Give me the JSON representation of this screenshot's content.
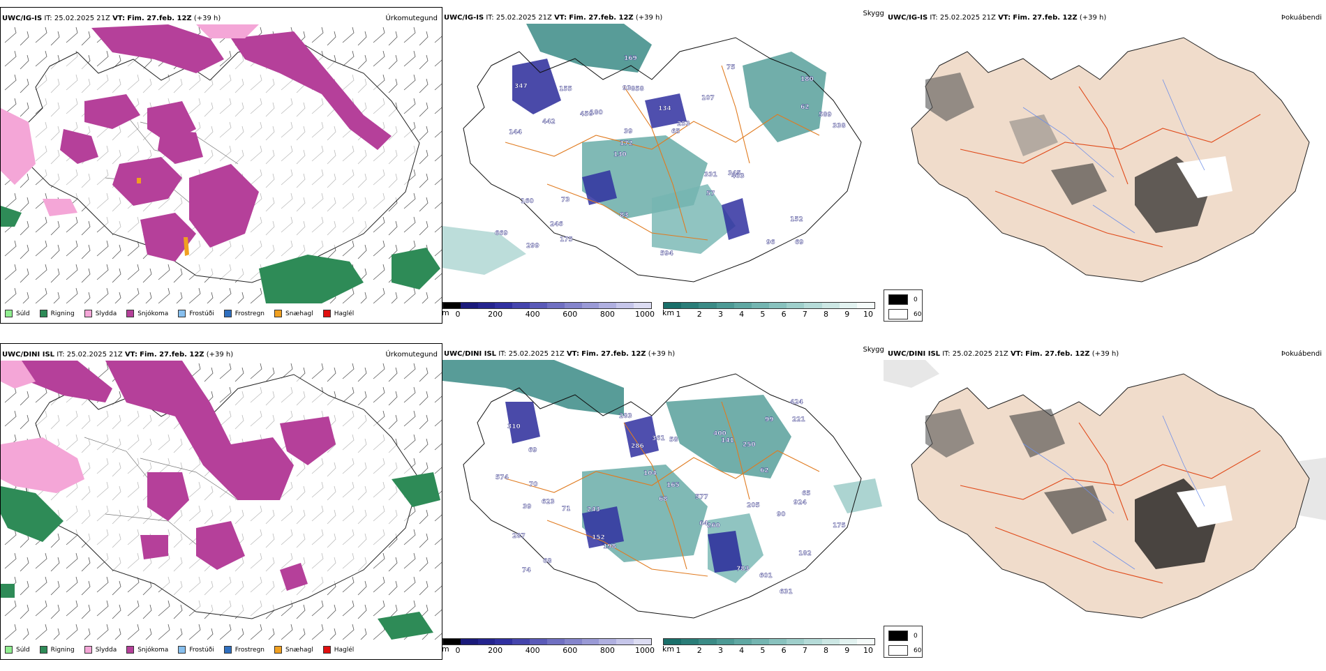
{
  "rows": [
    {
      "model": "UWC/IG-IS",
      "it_label": "IT:",
      "it": "25.02.2025 21Z",
      "vt_label": "VT:",
      "vt": "Fim. 27.feb. 12Z",
      "offset": "(+39 h)"
    },
    {
      "model": "UWC/DINI ISL",
      "it_label": "IT:",
      "it": "25.02.2025 21Z",
      "vt_label": "VT:",
      "vt": "Fim. 27.feb. 12Z",
      "offset": "(+39 h)"
    }
  ],
  "panel_names": {
    "precip": "Úrkomutegund",
    "visibility": "Skyggni",
    "fog": "Þokuábendi"
  },
  "precip_legend": [
    {
      "label": "Súld",
      "color": "#90ee90"
    },
    {
      "label": "Rigning",
      "color": "#2e8b57"
    },
    {
      "label": "Slydda",
      "color": "#f4a6d7"
    },
    {
      "label": "Snjókoma",
      "color": "#b5409a"
    },
    {
      "label": "Frostúði",
      "color": "#87bfee"
    },
    {
      "label": "Frostregn",
      "color": "#2f6fbf"
    },
    {
      "label": "Snæhagl",
      "color": "#f0a020"
    },
    {
      "label": "Haglél",
      "color": "#e01010"
    }
  ],
  "vis_m": {
    "unit": "m",
    "ticks": [
      "0",
      "200",
      "400",
      "600",
      "800",
      "1000"
    ],
    "colors": [
      "#000000",
      "#1a1a7a",
      "#24248e",
      "#3030a0",
      "#4545ad",
      "#5a5ab8",
      "#7070c2",
      "#8585cc",
      "#9a9ad6",
      "#b0b0e0",
      "#c6c6ea",
      "#dcdcf2"
    ]
  },
  "vis_km": {
    "unit": "km",
    "ticks": [
      "1",
      "2",
      "3",
      "4",
      "5",
      "6",
      "7",
      "8",
      "9",
      "10"
    ],
    "colors": [
      "#1a6f6a",
      "#2a7d78",
      "#3b8b86",
      "#4d9a95",
      "#60a8a3",
      "#74b5b1",
      "#89c2be",
      "#9fcfcb",
      "#b5dbd8",
      "#cce7e4",
      "#e2f2f0",
      "#f5fbfa"
    ]
  },
  "fog_legend": [
    {
      "label": "0",
      "color": "#000000"
    },
    {
      "label": "60",
      "color": "#ffffff"
    }
  ],
  "vis_labels": {
    "row0": [
      "69",
      "144",
      "180",
      "130",
      "107",
      "299",
      "93",
      "134",
      "160",
      "180",
      "669",
      "246",
      "858",
      "253",
      "403",
      "347",
      "169",
      "338",
      "331",
      "62",
      "172",
      "83",
      "39",
      "155",
      "75",
      "73",
      "96",
      "152",
      "345",
      "594",
      "450",
      "442",
      "57",
      "175",
      "589",
      "65"
    ],
    "row1": [
      "631",
      "623",
      "64",
      "310",
      "182",
      "69",
      "68",
      "243",
      "250",
      "361",
      "141",
      "601",
      "198",
      "283",
      "577",
      "287",
      "205",
      "165",
      "574",
      "74",
      "424",
      "58",
      "62",
      "175",
      "65",
      "70",
      "71",
      "68",
      "104",
      "221",
      "260",
      "39",
      "152",
      "400",
      "286",
      "90",
      "924",
      "783",
      "99"
    ]
  }
}
